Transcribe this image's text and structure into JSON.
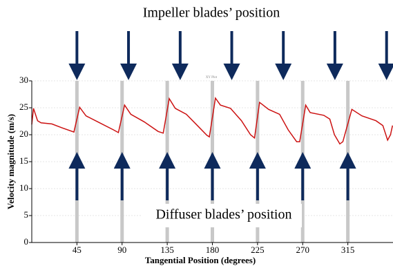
{
  "chart_data": {
    "type": "line",
    "title": "Impeller blades’ position",
    "subtitle": "XY Plot",
    "annotation": "Diffuser blades’ position",
    "x_label": "Tangential Position (degrees)",
    "y_label": "Velocity magnitude (m/s)",
    "xlim": [
      0,
      360
    ],
    "ylim": [
      0,
      30
    ],
    "xticks": [
      45,
      90,
      135,
      180,
      225,
      270,
      315
    ],
    "yticks": [
      0,
      5,
      10,
      15,
      20,
      25,
      30
    ],
    "grid": true,
    "impeller_positions": [
      45,
      96.4,
      147.9,
      199.3,
      250.7,
      302.1,
      353.6
    ],
    "diffuser_positions": [
      45,
      90,
      135,
      180,
      225,
      270,
      315
    ],
    "series": [
      {
        "name": "Velocity magnitude",
        "color": "#cc1111",
        "x": [
          0,
          1.7,
          5.8,
          9.2,
          20,
          30,
          42,
          47.7,
          54,
          67.7,
          81.5,
          86.3,
          92.5,
          98.7,
          112,
          126,
          131,
          137,
          143,
          154,
          164,
          174.5,
          177,
          183,
          188,
          198,
          209,
          218,
          222,
          227,
          236,
          247,
          255.6,
          264,
          267,
          273,
          277.5,
          291,
          297,
          301.6,
          307,
          310,
          319,
          329,
          343,
          349.9,
          354.6,
          357.5,
          359.5
        ],
        "values": [
          21.9,
          24.9,
          22.6,
          22.2,
          22.0,
          21.3,
          20.5,
          25.1,
          23.5,
          22.2,
          20.9,
          20.4,
          25.5,
          23.8,
          22.4,
          20.6,
          20.3,
          26.7,
          24.9,
          23.8,
          21.9,
          19.9,
          19.6,
          26.8,
          25.5,
          24.9,
          22.6,
          20.0,
          19.4,
          26.0,
          24.7,
          23.8,
          20.9,
          18.7,
          18.7,
          25.5,
          24.1,
          23.6,
          22.9,
          20.0,
          18.3,
          18.7,
          24.7,
          23.5,
          22.6,
          21.7,
          19.0,
          20.0,
          21.7
        ]
      }
    ]
  }
}
